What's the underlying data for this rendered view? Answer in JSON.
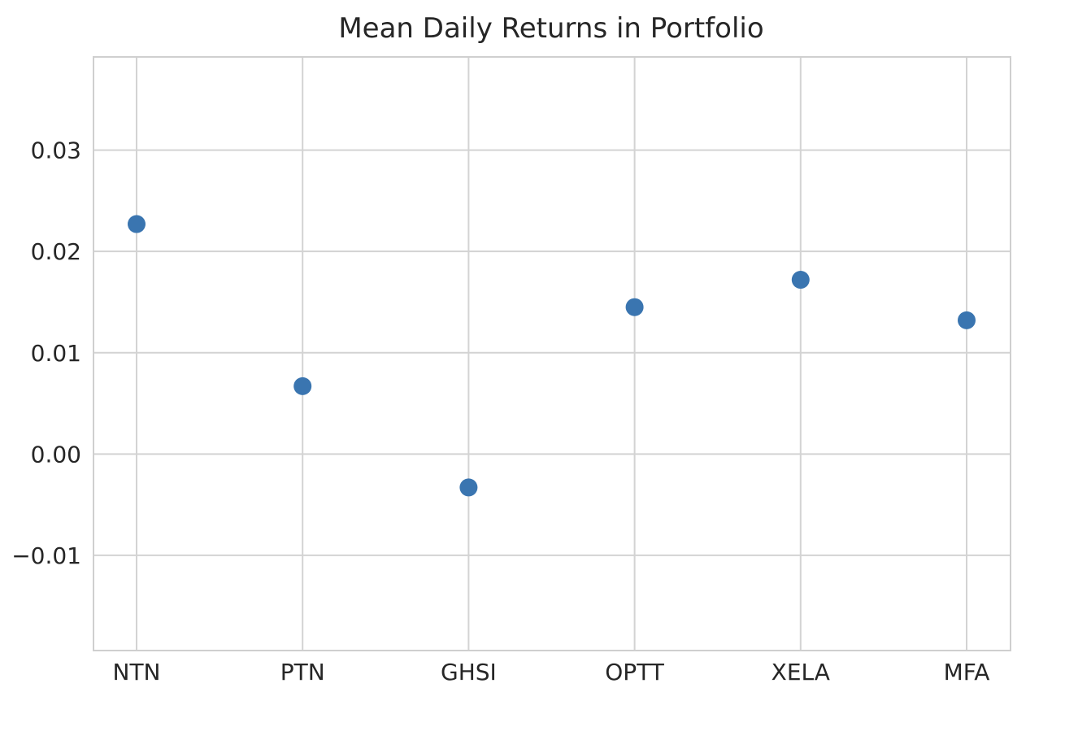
{
  "chart_data": {
    "type": "scatter",
    "title": "Mean Daily Returns in Portfolio",
    "xlabel": "",
    "ylabel": "",
    "categories": [
      "NTN",
      "PTN",
      "GHSI",
      "OPTT",
      "XELA",
      "MFA"
    ],
    "series": [
      {
        "values": [
          0.0227,
          0.0067,
          -0.0033,
          0.0145,
          0.0172,
          0.0132
        ]
      }
    ],
    "ylim": [
      -0.0194,
      0.0392
    ],
    "yticks": [
      -0.01,
      0.0,
      0.01,
      0.02,
      0.03
    ],
    "ytick_labels": [
      "−0.01",
      "0.00",
      "0.01",
      "0.02",
      "0.03"
    ],
    "grid": true,
    "colors": {
      "point": "#3a75b0",
      "grid": "#d3d3d3",
      "frame": "#cfcfcf",
      "background": "#ffffff"
    }
  }
}
